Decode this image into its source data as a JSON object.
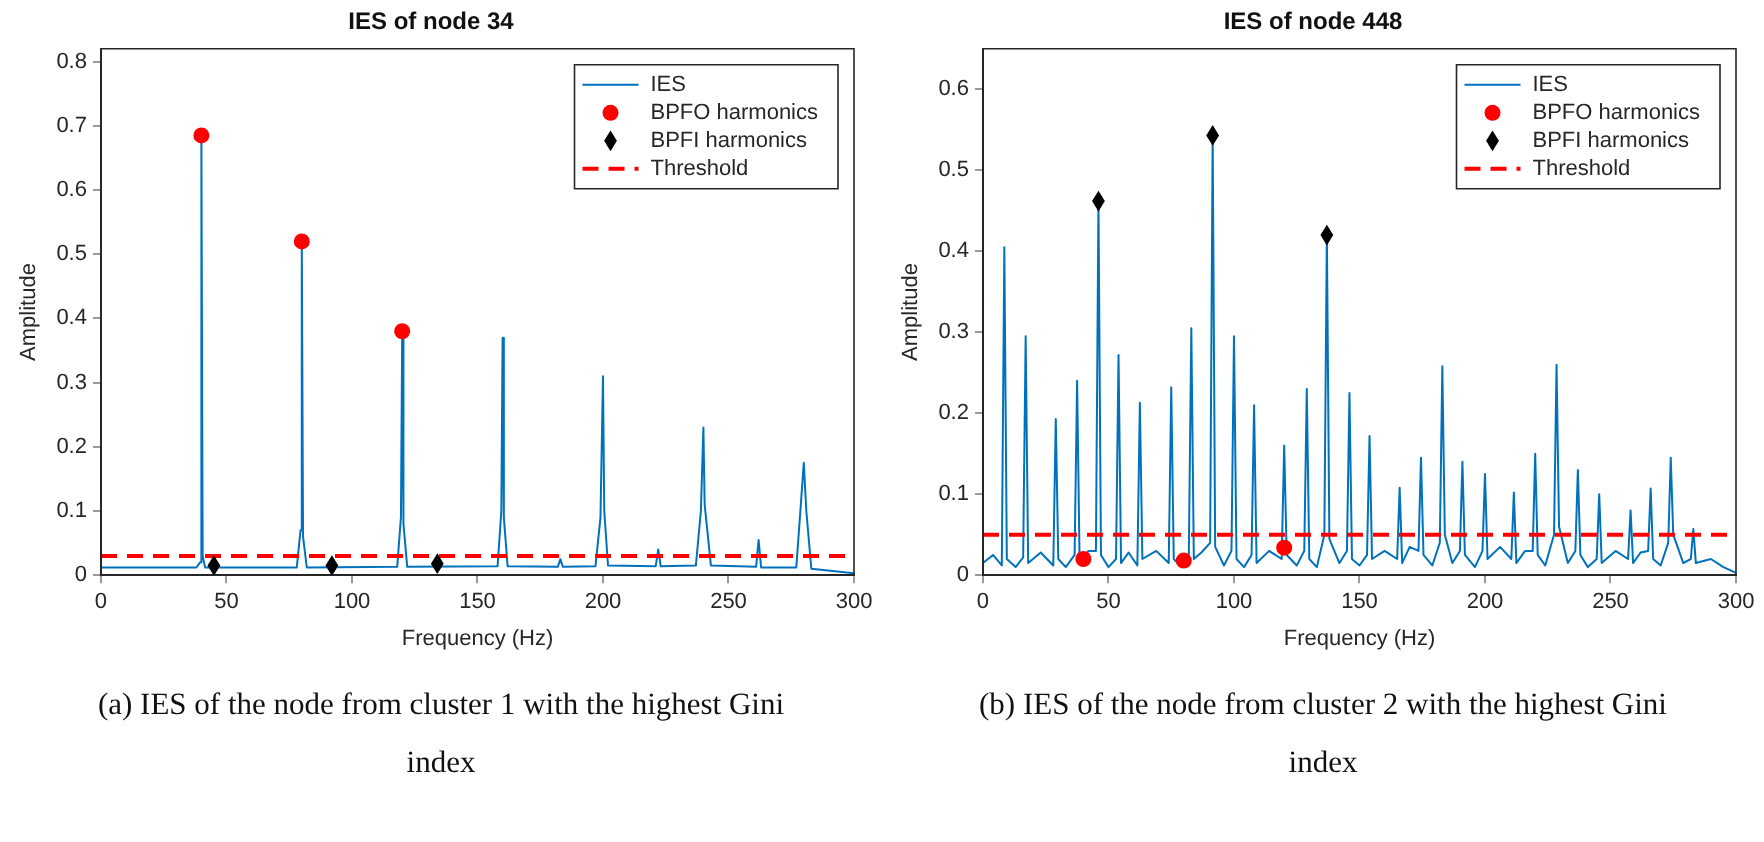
{
  "chart_data": [
    {
      "type": "line",
      "title": "IES of node 34",
      "xlabel": "Frequency (Hz)",
      "ylabel": "Amplitude",
      "xlim": [
        0,
        300
      ],
      "xticks": [
        0,
        50,
        100,
        150,
        200,
        250,
        300
      ],
      "ylim": [
        0,
        0.82
      ],
      "yticks": [
        0,
        0.1,
        0.2,
        0.3,
        0.4,
        0.5,
        0.6,
        0.7,
        0.8
      ],
      "grid": false,
      "legend": "top right",
      "annotations": [
        "(a) IES of the node from cluster 1 with the highest Gini index"
      ],
      "ref_lines": [
        {
          "axis": "y",
          "value": 0.03,
          "label": "Threshold",
          "color": "#ff0000",
          "line_style": "dashed"
        }
      ],
      "series": [
        {
          "name": "IES",
          "type": "line",
          "color": "#0072bd",
          "marker": "none",
          "x": [
            0,
            38,
            39.5,
            40,
            40.5,
            41.5,
            78,
            79.5,
            80,
            80.5,
            82,
            118,
            119.5,
            120,
            120.5,
            122,
            158,
            159.5,
            160,
            160.5,
            162,
            182,
            183,
            184,
            197,
            199,
            200,
            200.5,
            202,
            221,
            222,
            223,
            237,
            239,
            240,
            240.5,
            243,
            261,
            262,
            263,
            277,
            279,
            280,
            281,
            283,
            300
          ],
          "values": [
            0.012,
            0.012,
            0.02,
            0.685,
            0.03,
            0.012,
            0.012,
            0.07,
            0.52,
            0.06,
            0.012,
            0.013,
            0.09,
            0.375,
            0.08,
            0.013,
            0.014,
            0.1,
            0.37,
            0.09,
            0.014,
            0.013,
            0.025,
            0.013,
            0.014,
            0.09,
            0.31,
            0.1,
            0.015,
            0.014,
            0.04,
            0.014,
            0.015,
            0.1,
            0.23,
            0.11,
            0.015,
            0.013,
            0.055,
            0.012,
            0.012,
            0.12,
            0.175,
            0.1,
            0.01,
            0.003
          ]
        },
        {
          "name": "BPFO harmonics",
          "type": "scatter",
          "color": "#ff0000",
          "marker": "circle",
          "x": [
            40,
            80,
            120
          ],
          "values": [
            0.685,
            0.52,
            0.38
          ]
        },
        {
          "name": "BPFI harmonics",
          "type": "scatter",
          "color": "#000000",
          "marker": "diamond",
          "x": [
            45,
            92,
            134
          ],
          "values": [
            0.015,
            0.015,
            0.018
          ]
        }
      ]
    },
    {
      "type": "line",
      "title": "IES of node 448",
      "xlabel": "Frequency (Hz)",
      "ylabel": "Amplitude",
      "xlim": [
        0,
        300
      ],
      "xticks": [
        0,
        50,
        100,
        150,
        200,
        250,
        300
      ],
      "ylim": [
        0,
        0.65
      ],
      "yticks": [
        0,
        0.1,
        0.2,
        0.3,
        0.4,
        0.5,
        0.6
      ],
      "grid": false,
      "legend": "top right",
      "annotations": [
        "(b) IES of the node from cluster 2 with the highest Gini index"
      ],
      "ref_lines": [
        {
          "axis": "y",
          "value": 0.05,
          "label": "Threshold",
          "color": "#ff0000",
          "line_style": "dashed"
        }
      ],
      "series": [
        {
          "name": "IES",
          "type": "line",
          "color": "#0072bd",
          "marker": "none",
          "x": [
            0,
            4,
            7.5,
            8.5,
            9.5,
            13,
            16,
            17,
            18,
            23,
            28,
            29,
            30,
            33,
            36.5,
            37.5,
            38.5,
            42,
            45,
            46,
            47,
            50,
            53,
            54,
            55,
            58,
            61.5,
            62.5,
            63.5,
            69,
            74,
            75,
            76,
            79,
            82,
            83,
            84,
            87,
            90.5,
            91.5,
            92.5,
            96,
            99,
            100,
            101,
            104,
            107,
            108,
            109,
            114,
            119,
            120,
            121,
            125,
            128,
            129,
            130,
            133,
            136,
            137,
            138,
            142,
            145,
            146,
            147,
            150,
            153,
            154,
            155,
            160,
            165,
            166,
            167,
            170,
            173.5,
            174.5,
            175.5,
            179,
            182,
            183,
            184,
            187,
            190,
            191,
            192,
            196,
            199,
            200,
            201,
            206,
            210.5,
            211.5,
            212.5,
            216,
            219,
            220,
            221,
            224,
            227.5,
            228.5,
            229.5,
            233,
            236,
            237,
            238,
            241,
            244.5,
            245.5,
            246.5,
            252,
            257,
            258,
            259,
            262,
            265,
            266,
            267,
            270,
            273,
            274,
            275,
            279,
            282,
            283,
            284,
            290,
            295,
            300
          ],
          "values": [
            0.015,
            0.025,
            0.012,
            0.405,
            0.02,
            0.01,
            0.022,
            0.295,
            0.015,
            0.028,
            0.012,
            0.193,
            0.02,
            0.01,
            0.025,
            0.24,
            0.015,
            0.03,
            0.03,
            0.462,
            0.025,
            0.01,
            0.02,
            0.272,
            0.015,
            0.028,
            0.012,
            0.213,
            0.02,
            0.03,
            0.015,
            0.232,
            0.02,
            0.01,
            0.025,
            0.305,
            0.02,
            0.028,
            0.04,
            0.543,
            0.035,
            0.012,
            0.03,
            0.295,
            0.02,
            0.01,
            0.025,
            0.21,
            0.015,
            0.03,
            0.02,
            0.16,
            0.025,
            0.012,
            0.03,
            0.23,
            0.02,
            0.01,
            0.05,
            0.42,
            0.045,
            0.015,
            0.03,
            0.225,
            0.02,
            0.012,
            0.025,
            0.172,
            0.02,
            0.03,
            0.02,
            0.108,
            0.015,
            0.035,
            0.03,
            0.145,
            0.025,
            0.012,
            0.04,
            0.258,
            0.05,
            0.015,
            0.03,
            0.14,
            0.025,
            0.01,
            0.03,
            0.125,
            0.02,
            0.035,
            0.02,
            0.102,
            0.015,
            0.03,
            0.03,
            0.15,
            0.025,
            0.012,
            0.05,
            0.26,
            0.06,
            0.015,
            0.03,
            0.13,
            0.025,
            0.01,
            0.02,
            0.1,
            0.015,
            0.03,
            0.02,
            0.08,
            0.015,
            0.028,
            0.03,
            0.107,
            0.02,
            0.012,
            0.04,
            0.145,
            0.05,
            0.015,
            0.02,
            0.057,
            0.015,
            0.02,
            0.01,
            0.003
          ]
        },
        {
          "name": "BPFO harmonics",
          "type": "scatter",
          "color": "#ff0000",
          "marker": "circle",
          "x": [
            40,
            80,
            120
          ],
          "values": [
            0.02,
            0.018,
            0.034
          ]
        },
        {
          "name": "BPFI harmonics",
          "type": "scatter",
          "color": "#000000",
          "marker": "diamond",
          "x": [
            46,
            91.5,
            137
          ],
          "values": [
            0.462,
            0.543,
            0.42
          ]
        }
      ]
    }
  ]
}
